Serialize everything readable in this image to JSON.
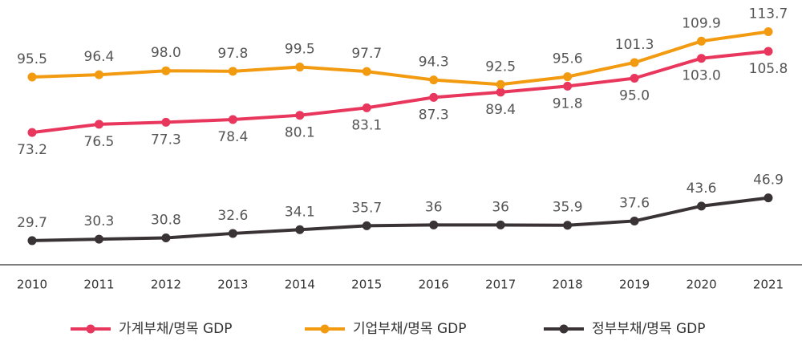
{
  "chart_data": {
    "type": "line",
    "categories": [
      "2010",
      "2011",
      "2012",
      "2013",
      "2014",
      "2015",
      "2016",
      "2017",
      "2018",
      "2019",
      "2020",
      "2021"
    ],
    "series": [
      {
        "name": "가계부채/명목 GDP",
        "color": "#e8365d",
        "values": [
          73.2,
          76.5,
          77.3,
          78.4,
          80.1,
          83.1,
          87.3,
          89.4,
          91.8,
          95.0,
          103.0,
          105.8
        ],
        "value_labels": [
          "73.2",
          "76.5",
          "77.3",
          "78.4",
          "80.1",
          "83.1",
          "87.3",
          "89.4",
          "91.8",
          "95.0",
          "103.0",
          "105.8"
        ]
      },
      {
        "name": "기업부채/명목 GDP",
        "color": "#f29b11",
        "values": [
          95.5,
          96.4,
          98.0,
          97.8,
          99.5,
          97.7,
          94.3,
          92.5,
          95.6,
          101.3,
          109.9,
          113.7
        ],
        "value_labels": [
          "95.5",
          "96.4",
          "98.0",
          "97.8",
          "99.5",
          "97.7",
          "94.3",
          "92.5",
          "95.6",
          "101.3",
          "109.9",
          "113.7"
        ]
      },
      {
        "name": "정부부채/명목 GDP",
        "color": "#3a3335",
        "values": [
          29.7,
          30.3,
          30.8,
          32.6,
          34.1,
          35.7,
          36,
          36,
          35.9,
          37.6,
          43.6,
          46.9
        ]
      }
    ],
    "ylim": [
      20,
      120
    ]
  }
}
